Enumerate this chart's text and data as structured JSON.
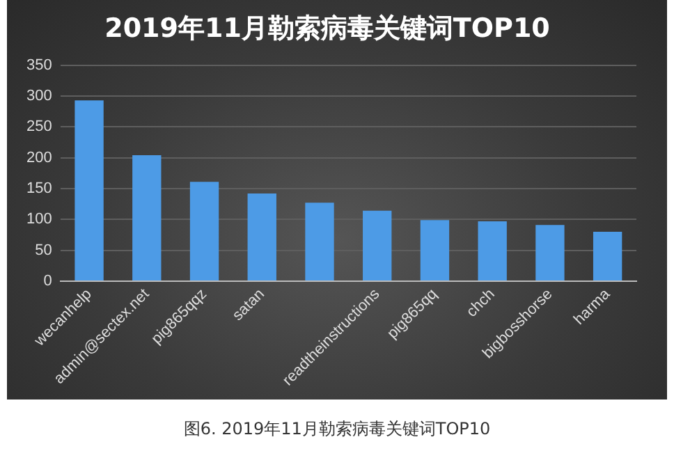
{
  "chart_data": {
    "type": "bar",
    "title": "2019年11月勒索病毒关键词TOP10",
    "categories": [
      "wecanhelp",
      "admin@sectex.net",
      "pig865qqz",
      "satan",
      null,
      "readtheinstructions",
      "pig865qq",
      "chch",
      "bigbosshorse",
      "harma"
    ],
    "values": [
      293,
      204,
      161,
      142,
      127,
      114,
      99,
      97,
      91,
      80
    ],
    "color": "#4d9be6",
    "ylim": [
      0,
      350
    ],
    "yticks": [
      0,
      50,
      100,
      150,
      200,
      250,
      300,
      350
    ],
    "grid": "y",
    "legend": false,
    "annotations": [
      "图6. 2019年11月勒索病毒关键词TOP10"
    ]
  }
}
